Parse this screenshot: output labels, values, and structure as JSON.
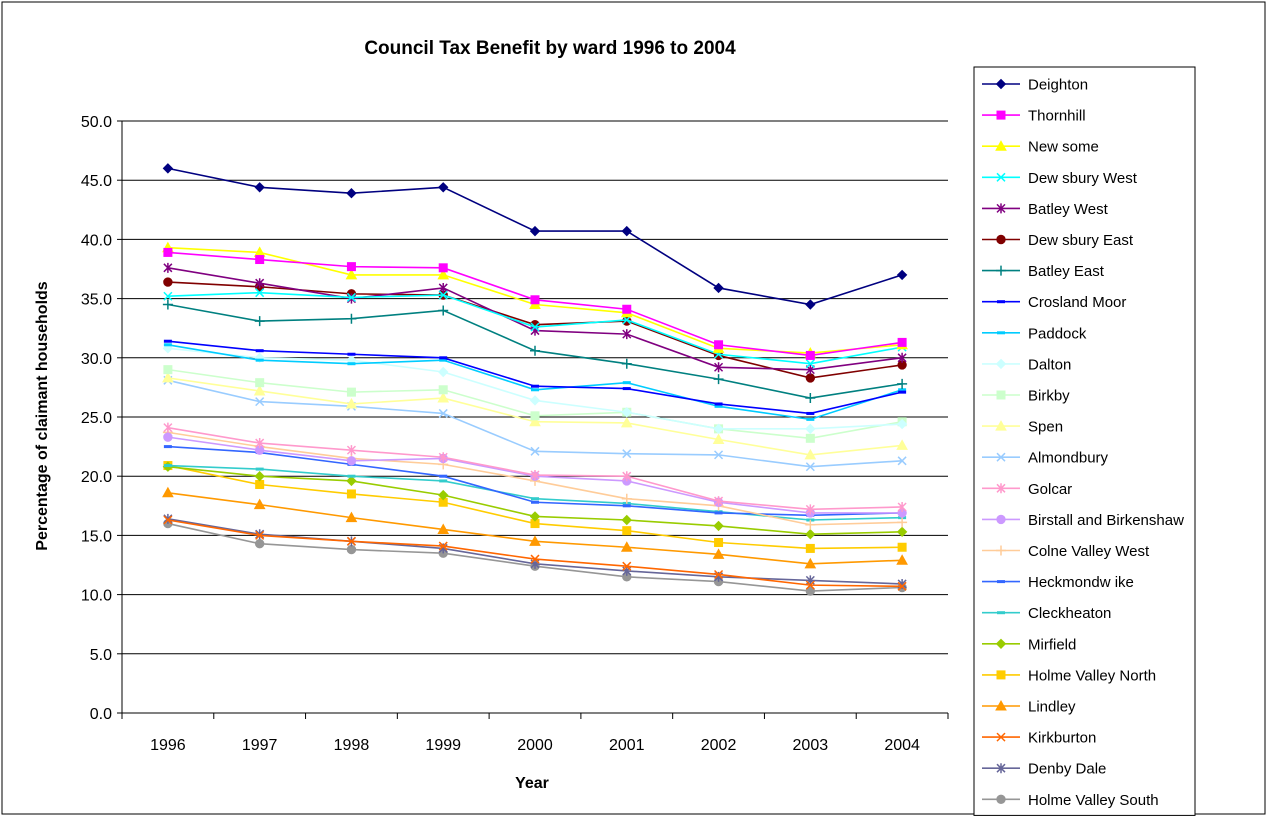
{
  "chart_data": {
    "type": "line",
    "title": "Council Tax Benefit by ward 1996 to 2004",
    "xlabel": "Year",
    "ylabel": "Percentage of claimant households",
    "categories": [
      "1996",
      "1997",
      "1998",
      "1999",
      "2000",
      "2001",
      "2002",
      "2003",
      "2004"
    ],
    "ylim": [
      0,
      50
    ],
    "yticks": [
      "0.0",
      "5.0",
      "10.0",
      "15.0",
      "20.0",
      "25.0",
      "30.0",
      "35.0",
      "40.0",
      "45.0",
      "50.0"
    ],
    "grid": "horizontal",
    "legend_position": "right",
    "series": [
      {
        "name": "Deighton",
        "color": "#000080",
        "marker": "diamond",
        "values": [
          46.0,
          44.4,
          43.9,
          44.4,
          40.7,
          40.7,
          35.9,
          34.5,
          37.0
        ]
      },
      {
        "name": "Thornhill",
        "color": "#FF00FF",
        "marker": "square",
        "values": [
          38.9,
          38.3,
          37.7,
          37.6,
          34.9,
          34.1,
          31.1,
          30.2,
          31.3
        ]
      },
      {
        "name": "New some",
        "color": "#FFFF00",
        "marker": "triangle",
        "values": [
          39.3,
          38.9,
          37.0,
          37.0,
          34.5,
          33.8,
          30.8,
          30.4,
          31.1
        ]
      },
      {
        "name": "Dew sbury West",
        "color": "#00FFFF",
        "marker": "x",
        "values": [
          35.2,
          35.5,
          35.1,
          35.3,
          32.6,
          33.2,
          30.3,
          29.5,
          30.9
        ]
      },
      {
        "name": "Batley West",
        "color": "#800080",
        "marker": "star",
        "values": [
          37.6,
          36.3,
          35.0,
          35.9,
          32.3,
          32.0,
          29.2,
          29.0,
          30.0
        ]
      },
      {
        "name": "Dew sbury East",
        "color": "#800000",
        "marker": "circle",
        "values": [
          36.4,
          36.0,
          35.4,
          35.3,
          32.8,
          33.1,
          30.2,
          28.3,
          29.4
        ]
      },
      {
        "name": "Batley East",
        "color": "#008080",
        "marker": "plus",
        "values": [
          34.5,
          33.1,
          33.3,
          34.0,
          30.6,
          29.5,
          28.2,
          26.6,
          27.8
        ]
      },
      {
        "name": "Crosland Moor",
        "color": "#0000FF",
        "marker": "dash",
        "values": [
          31.4,
          30.6,
          30.3,
          30.0,
          27.6,
          27.4,
          26.1,
          25.3,
          27.1
        ]
      },
      {
        "name": "Paddock",
        "color": "#00CCFF",
        "marker": "dash",
        "values": [
          31.1,
          29.8,
          29.5,
          29.8,
          27.3,
          27.9,
          25.9,
          24.8,
          27.3
        ]
      },
      {
        "name": "Dalton",
        "color": "#CCFFFF",
        "marker": "diamond",
        "values": [
          30.8,
          30.0,
          29.8,
          28.8,
          26.4,
          25.4,
          24.0,
          24.0,
          24.4
        ]
      },
      {
        "name": "Birkby",
        "color": "#CCFFCC",
        "marker": "square",
        "values": [
          29.0,
          27.9,
          27.1,
          27.3,
          25.1,
          25.4,
          24.0,
          23.2,
          24.6
        ]
      },
      {
        "name": "Spen",
        "color": "#FFFF99",
        "marker": "triangle",
        "values": [
          28.3,
          27.2,
          26.1,
          26.6,
          24.6,
          24.5,
          23.1,
          21.8,
          22.6
        ]
      },
      {
        "name": "Almondbury",
        "color": "#99CCFF",
        "marker": "x",
        "values": [
          28.1,
          26.3,
          25.9,
          25.3,
          22.1,
          21.9,
          21.8,
          20.8,
          21.3
        ]
      },
      {
        "name": "Golcar",
        "color": "#FF99CC",
        "marker": "star",
        "values": [
          24.1,
          22.8,
          22.2,
          21.6,
          20.1,
          20.0,
          17.9,
          17.2,
          17.4
        ]
      },
      {
        "name": "Birstall and Birkenshaw",
        "color": "#CC99FF",
        "marker": "circle",
        "values": [
          23.3,
          22.2,
          21.3,
          21.5,
          20.0,
          19.6,
          17.8,
          16.9,
          16.9
        ]
      },
      {
        "name": "Colne Valley West",
        "color": "#FFCC99",
        "marker": "plus",
        "values": [
          23.7,
          22.5,
          21.5,
          21.0,
          19.6,
          18.1,
          17.5,
          15.9,
          16.1
        ]
      },
      {
        "name": "Heckmondw ike",
        "color": "#3366FF",
        "marker": "dash",
        "values": [
          22.5,
          22.0,
          21.0,
          20.0,
          17.8,
          17.5,
          16.9,
          16.7,
          16.9
        ]
      },
      {
        "name": "Cleckheaton",
        "color": "#33CCCC",
        "marker": "dash",
        "values": [
          20.9,
          20.6,
          20.0,
          19.6,
          18.1,
          17.7,
          17.0,
          16.3,
          16.5
        ]
      },
      {
        "name": "Mirfield",
        "color": "#99CC00",
        "marker": "diamond",
        "values": [
          20.8,
          20.0,
          19.6,
          18.4,
          16.6,
          16.3,
          15.8,
          15.1,
          15.3
        ]
      },
      {
        "name": "Holme Valley North",
        "color": "#FFCC00",
        "marker": "square",
        "values": [
          20.9,
          19.3,
          18.5,
          17.8,
          16.0,
          15.4,
          14.4,
          13.9,
          14.0
        ]
      },
      {
        "name": "Lindley",
        "color": "#FF9900",
        "marker": "triangle",
        "values": [
          18.6,
          17.6,
          16.5,
          15.5,
          14.5,
          14.0,
          13.4,
          12.6,
          12.9
        ]
      },
      {
        "name": "Kirkburton",
        "color": "#FF6600",
        "marker": "x",
        "values": [
          16.3,
          15.0,
          14.5,
          14.1,
          13.0,
          12.4,
          11.7,
          10.8,
          10.7
        ]
      },
      {
        "name": "Denby Dale",
        "color": "#666699",
        "marker": "star",
        "values": [
          16.4,
          15.1,
          14.5,
          13.9,
          12.6,
          12.0,
          11.5,
          11.2,
          10.9
        ]
      },
      {
        "name": "Holme Valley South",
        "color": "#969696",
        "marker": "circle",
        "values": [
          16.0,
          14.3,
          13.8,
          13.5,
          12.4,
          11.5,
          11.1,
          10.3,
          10.6
        ]
      }
    ]
  }
}
